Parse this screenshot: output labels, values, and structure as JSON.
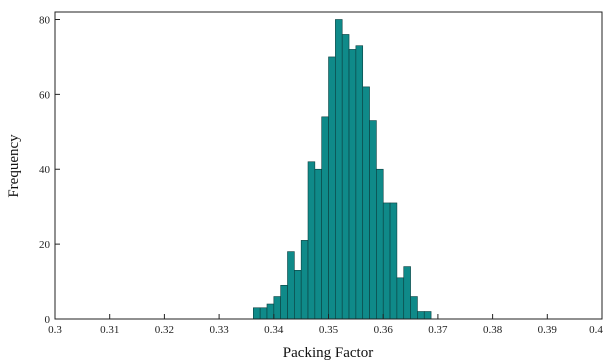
{
  "chart_data": {
    "type": "bar",
    "xlabel": "Packing Factor",
    "ylabel": "Frequency",
    "xlim": [
      0.3,
      0.4
    ],
    "ylim": [
      0,
      82
    ],
    "x_ticks": [
      "0.3",
      "0.31",
      "0.32",
      "0.33",
      "0.34",
      "0.35",
      "0.36",
      "0.37",
      "0.38",
      "0.39",
      "0.4"
    ],
    "y_ticks": [
      "0",
      "20",
      "40",
      "60",
      "80"
    ],
    "bin_width": 0.00125,
    "bins": [
      {
        "x": 0.33688,
        "value": 3
      },
      {
        "x": 0.33813,
        "value": 3
      },
      {
        "x": 0.33938,
        "value": 4
      },
      {
        "x": 0.34063,
        "value": 6
      },
      {
        "x": 0.34188,
        "value": 9
      },
      {
        "x": 0.34313,
        "value": 18
      },
      {
        "x": 0.34438,
        "value": 13
      },
      {
        "x": 0.34563,
        "value": 21
      },
      {
        "x": 0.34688,
        "value": 42
      },
      {
        "x": 0.34813,
        "value": 40
      },
      {
        "x": 0.34938,
        "value": 54
      },
      {
        "x": 0.35063,
        "value": 70
      },
      {
        "x": 0.35188,
        "value": 80
      },
      {
        "x": 0.35313,
        "value": 76
      },
      {
        "x": 0.35438,
        "value": 72
      },
      {
        "x": 0.35563,
        "value": 73
      },
      {
        "x": 0.35688,
        "value": 62
      },
      {
        "x": 0.35813,
        "value": 53
      },
      {
        "x": 0.35938,
        "value": 40
      },
      {
        "x": 0.36063,
        "value": 31
      },
      {
        "x": 0.36188,
        "value": 31
      },
      {
        "x": 0.36313,
        "value": 11
      },
      {
        "x": 0.36438,
        "value": 14
      },
      {
        "x": 0.36563,
        "value": 6
      },
      {
        "x": 0.36688,
        "value": 2
      },
      {
        "x": 0.36813,
        "value": 2
      }
    ],
    "bar_color": "#0f8a89",
    "bar_edge_color": "#0b3f3f",
    "grid": false
  }
}
